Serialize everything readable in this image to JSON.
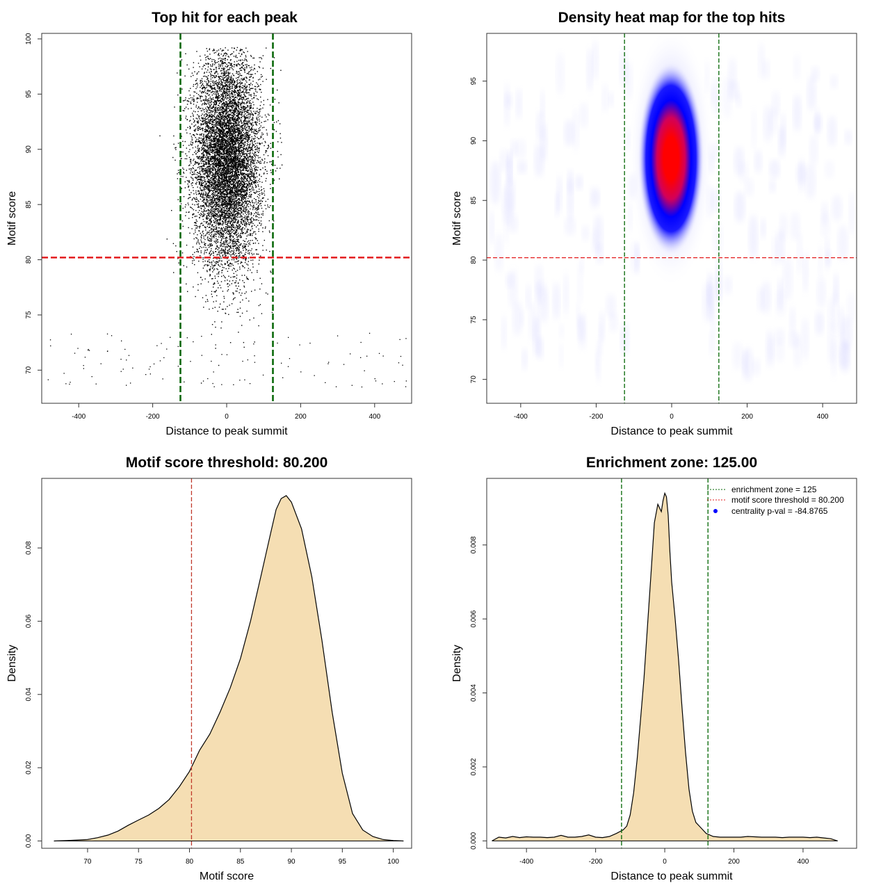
{
  "chart_data": [
    {
      "type": "scatter",
      "title": "Top hit for each peak",
      "xlabel": "Distance to peak summit",
      "ylabel": "Motif score",
      "xlim": [
        -500,
        500
      ],
      "ylim": [
        67,
        100.5
      ],
      "xticks": [
        -400,
        -200,
        0,
        200,
        400
      ],
      "yticks": [
        70,
        75,
        80,
        85,
        90,
        95,
        100
      ],
      "vlines": [
        -125,
        125
      ],
      "hline": 80.2,
      "colors": {
        "points": "#000000",
        "vlines": "#006400",
        "hline": "#e31a1c"
      },
      "points": {
        "note_counts": "dense cluster centered at x=0 (sd ~45), y~89 (sd ~5); sparse uniform background from -500 to 500, y 68-99",
        "cluster_center": [
          0,
          89
        ],
        "cluster_count": 9000,
        "background_count": 1400
      }
    },
    {
      "type": "heatmap",
      "title": "Density heat map for the top hits",
      "xlabel": "Distance to peak summit",
      "ylabel": "Motif score",
      "xlim": [
        -490,
        490
      ],
      "ylim": [
        68,
        99
      ],
      "xticks": [
        -400,
        -200,
        0,
        200,
        400
      ],
      "yticks": [
        70,
        75,
        80,
        85,
        90,
        95
      ],
      "vlines": [
        -125,
        125
      ],
      "hline": 80.2,
      "peak": [
        0,
        89.5
      ],
      "colors": {
        "low": "#ffffff",
        "mid": "#0000ff",
        "high": "#ff0000",
        "vlines": "#006400",
        "hline": "#e31a1c"
      }
    },
    {
      "type": "area",
      "title": "Motif score threshold: 80.200",
      "xlabel": "Motif score",
      "ylabel": "Density",
      "xlim": [
        65.5,
        101.8
      ],
      "ylim": [
        -0.002,
        0.099
      ],
      "xticks": [
        70,
        75,
        80,
        85,
        90,
        95,
        100
      ],
      "yticks": [
        0.0,
        0.02,
        0.04,
        0.06,
        0.08
      ],
      "vline": 80.2,
      "colors": {
        "fill": "#f5deb3",
        "line": "#000000",
        "vline": "#c0392b"
      },
      "x": [
        66.7,
        68.0,
        70.0,
        71.0,
        72.0,
        73.0,
        74.0,
        75.0,
        76.0,
        77.0,
        78.0,
        79.0,
        80.0,
        81.0,
        82.0,
        83.0,
        84.0,
        85.0,
        86.0,
        87.0,
        88.0,
        88.5,
        89.0,
        89.5,
        90.0,
        91.0,
        92.0,
        93.0,
        94.0,
        95.0,
        96.0,
        97.0,
        98.0,
        99.0,
        100.0,
        101.0
      ],
      "y": [
        0.0,
        0.0001,
        0.0004,
        0.0009,
        0.0016,
        0.0027,
        0.0043,
        0.0057,
        0.0071,
        0.0089,
        0.0113,
        0.0148,
        0.019,
        0.0248,
        0.0292,
        0.0352,
        0.0418,
        0.0498,
        0.0601,
        0.0722,
        0.0845,
        0.0905,
        0.0935,
        0.0943,
        0.0925,
        0.0852,
        0.0722,
        0.0548,
        0.0352,
        0.0185,
        0.0075,
        0.003,
        0.0012,
        0.0004,
        0.0001,
        0.0
      ]
    },
    {
      "type": "area",
      "title": "Enrichment zone: 125.00",
      "xlabel": "Distance to peak summit",
      "ylabel": "Density",
      "xlim": [
        -515,
        555
      ],
      "ylim": [
        -0.0002,
        0.0098
      ],
      "xticks": [
        -400,
        -200,
        0,
        200,
        400
      ],
      "yticks": [
        0.0,
        0.002,
        0.004,
        0.006,
        0.008
      ],
      "vlines": [
        -125,
        125
      ],
      "colors": {
        "fill": "#f5deb3",
        "line": "#000000",
        "vlines": "#006400",
        "hline": "#e31a1c",
        "point": "#0000ff"
      },
      "x": [
        -500,
        -480,
        -460,
        -440,
        -420,
        -400,
        -380,
        -360,
        -340,
        -320,
        -300,
        -280,
        -260,
        -240,
        -220,
        -200,
        -180,
        -160,
        -140,
        -120,
        -110,
        -100,
        -90,
        -80,
        -70,
        -60,
        -50,
        -40,
        -30,
        -20,
        -15,
        -10,
        -5,
        0,
        5,
        10,
        15,
        20,
        30,
        40,
        50,
        60,
        70,
        80,
        90,
        100,
        110,
        120,
        140,
        160,
        180,
        200,
        220,
        240,
        260,
        280,
        300,
        320,
        340,
        360,
        380,
        400,
        420,
        440,
        460,
        480,
        500
      ],
      "y": [
        0.0,
        0.0001,
        8e-05,
        0.00012,
        9e-05,
        0.00011,
        0.0001,
        0.0001,
        9e-05,
        0.0001,
        0.00015,
        0.0001,
        0.0001,
        0.00012,
        0.00016,
        0.0001,
        9e-05,
        0.00012,
        0.0002,
        0.0003,
        0.0004,
        0.0007,
        0.0013,
        0.0022,
        0.0033,
        0.0044,
        0.0058,
        0.0072,
        0.0086,
        0.0091,
        0.009,
        0.0089,
        0.0092,
        0.0094,
        0.0093,
        0.0088,
        0.0078,
        0.007,
        0.006,
        0.0049,
        0.0036,
        0.0024,
        0.0014,
        0.0008,
        0.0005,
        0.0004,
        0.0003,
        0.0002,
        0.00012,
        0.0001,
        0.0001,
        0.0001,
        0.0001,
        0.00012,
        0.00011,
        0.0001,
        0.0001,
        0.0001,
        9e-05,
        0.0001,
        0.0001,
        0.0001,
        9e-05,
        0.0001,
        8e-05,
        6e-05,
        0.0
      ],
      "legend": {
        "placement": "top-right",
        "items": [
          {
            "label": "enrichment zone = 125",
            "kind": "line",
            "color": "#006400"
          },
          {
            "label": "motif score threshold = 80.200",
            "kind": "line",
            "color": "#e31a1c"
          },
          {
            "label": "centrality p-val = -84.8765",
            "kind": "point",
            "color": "#0000ff"
          }
        ]
      }
    }
  ]
}
